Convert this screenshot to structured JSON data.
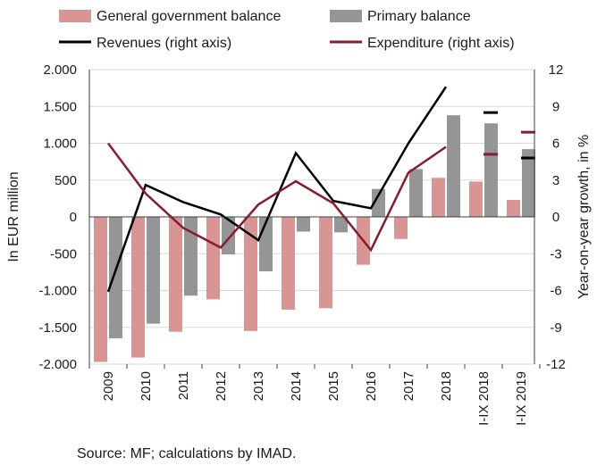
{
  "chart_data": {
    "type": "bar",
    "categories": [
      "2009",
      "2010",
      "2011",
      "2012",
      "2013",
      "2014",
      "2015",
      "2016",
      "2017",
      "2018",
      "I-IX 2018",
      "I-IX 2019"
    ],
    "series": [
      {
        "name": "General government balance",
        "kind": "bar",
        "axis": "left",
        "color": "#d99594",
        "values": [
          -1970,
          -1910,
          -1560,
          -1120,
          -1550,
          -1260,
          -1240,
          -650,
          -300,
          530,
          480,
          230
        ]
      },
      {
        "name": "Primary balance",
        "kind": "bar",
        "axis": "left",
        "color": "#959595",
        "values": [
          -1650,
          -1450,
          -1070,
          -510,
          -740,
          -200,
          -210,
          380,
          650,
          1380,
          1270,
          920
        ]
      },
      {
        "name": "Revenues (right axis)",
        "kind": "line",
        "axis": "right",
        "color": "#000000",
        "values": [
          -6.1,
          2.6,
          1.2,
          0.2,
          -1.9,
          5.2,
          1.3,
          0.7,
          6.0,
          10.6,
          8.5,
          4.8
        ]
      },
      {
        "name": "Expenditure (right axis)",
        "kind": "line",
        "axis": "right",
        "color": "#8b1a2b",
        "values": [
          6.0,
          1.9,
          -0.9,
          -2.5,
          1.0,
          2.9,
          1.1,
          -2.7,
          3.6,
          5.7,
          5.1,
          6.9
        ]
      }
    ],
    "line_connected_points": 10,
    "ylabel": "In EUR million",
    "y2label": "Year-on-year growth, in %",
    "ylim": [
      -2000,
      2000
    ],
    "y2lim": [
      -12,
      12
    ],
    "y_ticks": [
      "2.000",
      "1.500",
      "1.000",
      "500",
      "0",
      "-500",
      "-1.000",
      "-1.500",
      "-2.000"
    ],
    "y2_ticks": [
      "12",
      "9",
      "6",
      "3",
      "0",
      "-3",
      "-6",
      "-9",
      "-12"
    ],
    "grid": true,
    "legend_position": "top"
  },
  "source": "Source: MF; calculations by IMAD."
}
